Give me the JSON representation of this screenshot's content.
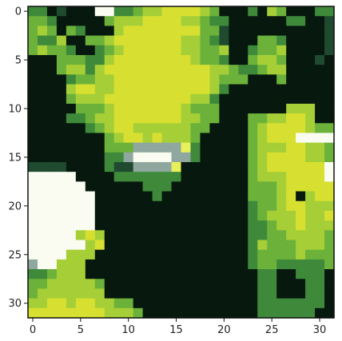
{
  "chart_data": {
    "type": "heatmap",
    "title": "",
    "xlabel": "",
    "ylabel": "",
    "x_range": [
      0,
      31
    ],
    "y_range": [
      0,
      31
    ],
    "y_axis_direction": "top-to-bottom",
    "x_ticks": [
      "0",
      "5",
      "10",
      "15",
      "20",
      "25",
      "30"
    ],
    "y_ticks": [
      "0",
      "5",
      "10",
      "15",
      "20",
      "25",
      "30"
    ],
    "colorscale": [
      {
        "level": 0,
        "color": "#07180f"
      },
      {
        "level": 1,
        "color": "#1f4a2f"
      },
      {
        "level": 2,
        "color": "#3e8a3a"
      },
      {
        "level": 3,
        "color": "#6cb23a"
      },
      {
        "level": 4,
        "color": "#a6cf37"
      },
      {
        "level": 5,
        "color": "#d7e030"
      },
      {
        "level": 6,
        "color": "#e9f15a"
      },
      {
        "level": 7,
        "color": "#8fa79f"
      },
      {
        "level": 8,
        "color": "#fafcf2"
      }
    ],
    "grid": false,
    "rows": [
      "22010008822344555543000204300022",
      "33200000344455554432200000022001",
      "34303200045555555533100000000001",
      "32240033455555554432100033200001",
      "34332002345555554433400233400001",
      "00033322455555555433200344300010",
      "00034424555555555554432234400000",
      "00002334455555555554333000300000",
      "00004554455555555554200000000000",
      "00003444555555555442000000000000",
      "00000333455555554333000000044400",
      "00002234455555554433000334455400",
      "00000023455444444330000345555433",
      "00000000345545444300000345558888",
      "00000000333777776200000344455443",
      "00000000227888877200000345555443",
      "11110000211777760000000345555558",
      "88888000022222220000000344455558",
      "88888800000022200000000333455555",
      "88888880000002000000000333450455",
      "88888880000000000000000233455444",
      "88888880000000000000000234445445",
      "88888880000000000000000223445444",
      "88888454000000000000000223344443",
      "88888845000000000000000243334443",
      "88884440000000000000000233334333",
      "78844400000000000000000233222223",
      "22344400000000000000000022002220",
      "33444443000000000000000022000220",
      "34444444000000000000000022000220",
      "44554554433000000000000022222220",
      "55555555444300000000000022222200"
    ]
  }
}
